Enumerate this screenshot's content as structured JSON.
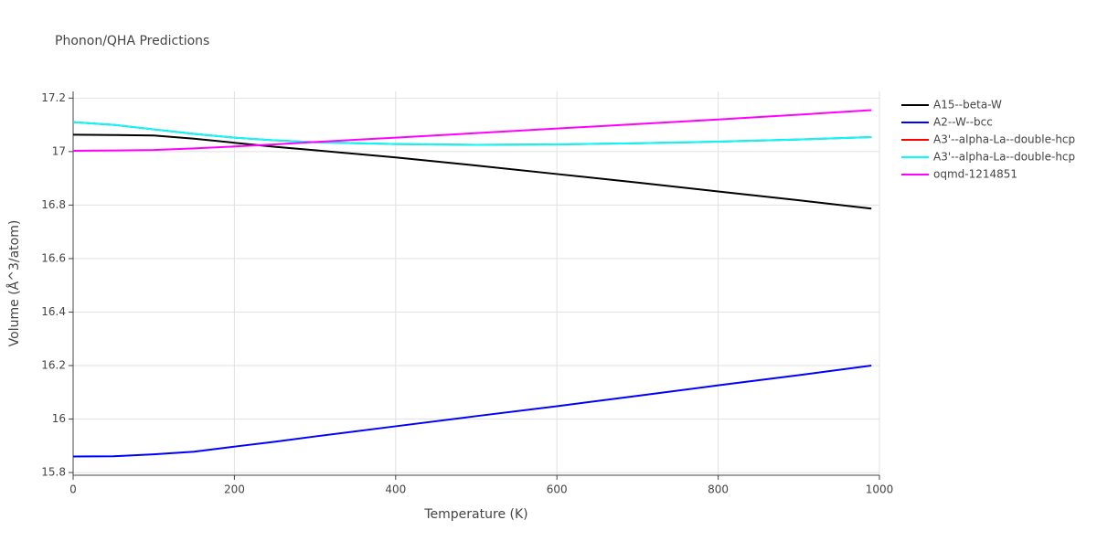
{
  "chart_data": {
    "type": "line",
    "title": "Phonon/QHA Predictions",
    "x_label": "Temperature (K)",
    "y_label": "Volume (Å^3/atom)",
    "x": [
      0,
      50,
      100,
      150,
      200,
      250,
      300,
      400,
      500,
      600,
      700,
      800,
      900,
      990
    ],
    "series": [
      {
        "name": "A15--beta-W",
        "color": "#000000",
        "values": [
          17.063,
          17.062,
          17.06,
          17.048,
          17.033,
          17.018,
          17.005,
          16.978,
          16.948,
          16.916,
          16.884,
          16.851,
          16.818,
          16.787
        ]
      },
      {
        "name": "A2--W--bcc",
        "color": "#0000ff",
        "values": [
          15.86,
          15.861,
          15.868,
          15.878,
          15.897,
          15.915,
          15.935,
          15.973,
          16.011,
          16.048,
          16.087,
          16.126,
          16.164,
          16.2
        ]
      },
      {
        "name": "A3'--alpha-La--double-hcp",
        "color": "#ff0000",
        "values": [
          17.11,
          17.1,
          17.083,
          17.066,
          17.052,
          17.042,
          17.035,
          17.028,
          17.025,
          17.027,
          17.031,
          17.037,
          17.045,
          17.054
        ]
      },
      {
        "name": "A3'--alpha-La--double-hcp",
        "color": "#00ffff",
        "values": [
          17.11,
          17.1,
          17.083,
          17.066,
          17.052,
          17.042,
          17.035,
          17.028,
          17.025,
          17.027,
          17.031,
          17.037,
          17.045,
          17.054
        ]
      },
      {
        "name": "oqmd-1214851",
        "color": "#ff00ff",
        "values": [
          17.003,
          17.004,
          17.006,
          17.012,
          17.019,
          17.027,
          17.036,
          17.052,
          17.069,
          17.086,
          17.103,
          17.12,
          17.138,
          17.155
        ]
      }
    ],
    "xlim": [
      0,
      1000
    ],
    "xticks": [
      0,
      200,
      400,
      600,
      800,
      1000
    ],
    "ylim": [
      15.79,
      17.225
    ],
    "yticks": [
      15.8,
      16,
      16.2,
      16.4,
      16.6,
      16.8,
      17,
      17.2
    ],
    "grid": true,
    "legend": "right"
  }
}
